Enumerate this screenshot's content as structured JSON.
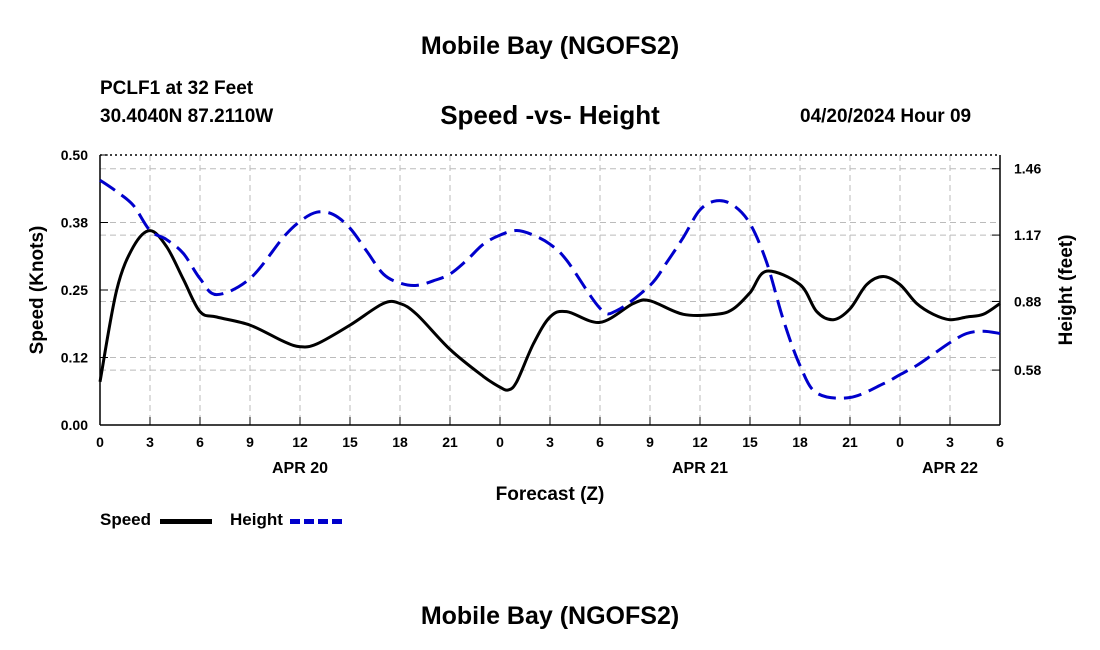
{
  "header": {
    "title_top": "Mobile Bay (NGOFS2)",
    "title_bottom": "Mobile Bay (NGOFS2)",
    "station": "PCLF1 at 32 Feet",
    "coords": "30.4040N  87.2110W",
    "chart_title": "Speed -vs- Height",
    "datetime": "04/20/2024 Hour 09"
  },
  "legend": {
    "speed_label": "Speed",
    "height_label": "Height"
  },
  "colors": {
    "speed": "#000000",
    "height": "#0000cc",
    "grid": "#bbbbbb"
  },
  "chart_data": {
    "type": "line",
    "title": "Speed -vs- Height",
    "xlabel": "Forecast (Z)",
    "ylabel": "Speed (Knots)",
    "y2label": "Height (feet)",
    "x_range_hours": [
      0,
      54
    ],
    "x_tick_labels": [
      "0",
      "3",
      "6",
      "9",
      "12",
      "15",
      "18",
      "21",
      "0",
      "3",
      "6",
      "9",
      "12",
      "15",
      "18",
      "21",
      "0",
      "3",
      "6"
    ],
    "date_labels": [
      {
        "label": "APR 20",
        "hour": 12
      },
      {
        "label": "APR 21",
        "hour": 36
      },
      {
        "label": "APR 22",
        "hour": 51
      }
    ],
    "y_ticks": [
      "0.00",
      "0.12",
      "0.25",
      "0.38",
      "0.50"
    ],
    "ylim": [
      0,
      0.5
    ],
    "y2_ticks": [
      "0.58",
      "0.88",
      "1.17",
      "1.46"
    ],
    "y2lim": [
      0.34,
      1.52
    ],
    "grid": true,
    "legend_position": "bottom-left",
    "series": [
      {
        "name": "Speed",
        "axis": "left",
        "style": "solid",
        "x": [
          0,
          1,
          2,
          3,
          4,
          5,
          6,
          7,
          9,
          11,
          12,
          13,
          15,
          17,
          18,
          19,
          21,
          23,
          24,
          24.5,
          25,
          26,
          27,
          28,
          30,
          32,
          33,
          35,
          37,
          38,
          39,
          40,
          42,
          43,
          44,
          45,
          46,
          47,
          48,
          49,
          50,
          51,
          52,
          53,
          54
        ],
        "y": [
          0.08,
          0.25,
          0.33,
          0.36,
          0.33,
          0.27,
          0.21,
          0.2,
          0.185,
          0.155,
          0.145,
          0.15,
          0.185,
          0.225,
          0.225,
          0.205,
          0.14,
          0.09,
          0.07,
          0.065,
          0.08,
          0.15,
          0.2,
          0.21,
          0.19,
          0.225,
          0.23,
          0.205,
          0.205,
          0.215,
          0.245,
          0.285,
          0.26,
          0.21,
          0.195,
          0.215,
          0.26,
          0.275,
          0.26,
          0.225,
          0.205,
          0.195,
          0.2,
          0.205,
          0.225
        ]
      },
      {
        "name": "Height",
        "axis": "right",
        "style": "dashed",
        "x": [
          0,
          1,
          2,
          3,
          4,
          5,
          6,
          7,
          9,
          11,
          12,
          13,
          14,
          15,
          16,
          17,
          18,
          19,
          20,
          21,
          22,
          23,
          24,
          25,
          26,
          27,
          28,
          30,
          31,
          33,
          34,
          35,
          36,
          37,
          38,
          39,
          40,
          41,
          42,
          43,
          45,
          47,
          48,
          49,
          50,
          51,
          52,
          53,
          54
        ],
        "y": [
          1.41,
          1.36,
          1.3,
          1.19,
          1.15,
          1.09,
          0.98,
          0.91,
          0.98,
          1.16,
          1.23,
          1.27,
          1.26,
          1.2,
          1.1,
          1.0,
          0.96,
          0.95,
          0.97,
          1.0,
          1.06,
          1.13,
          1.17,
          1.19,
          1.17,
          1.13,
          1.06,
          0.85,
          0.84,
          0.95,
          1.05,
          1.16,
          1.28,
          1.32,
          1.3,
          1.22,
          1.05,
          0.8,
          0.6,
          0.48,
          0.46,
          0.52,
          0.56,
          0.6,
          0.65,
          0.7,
          0.74,
          0.75,
          0.74
        ]
      }
    ]
  }
}
